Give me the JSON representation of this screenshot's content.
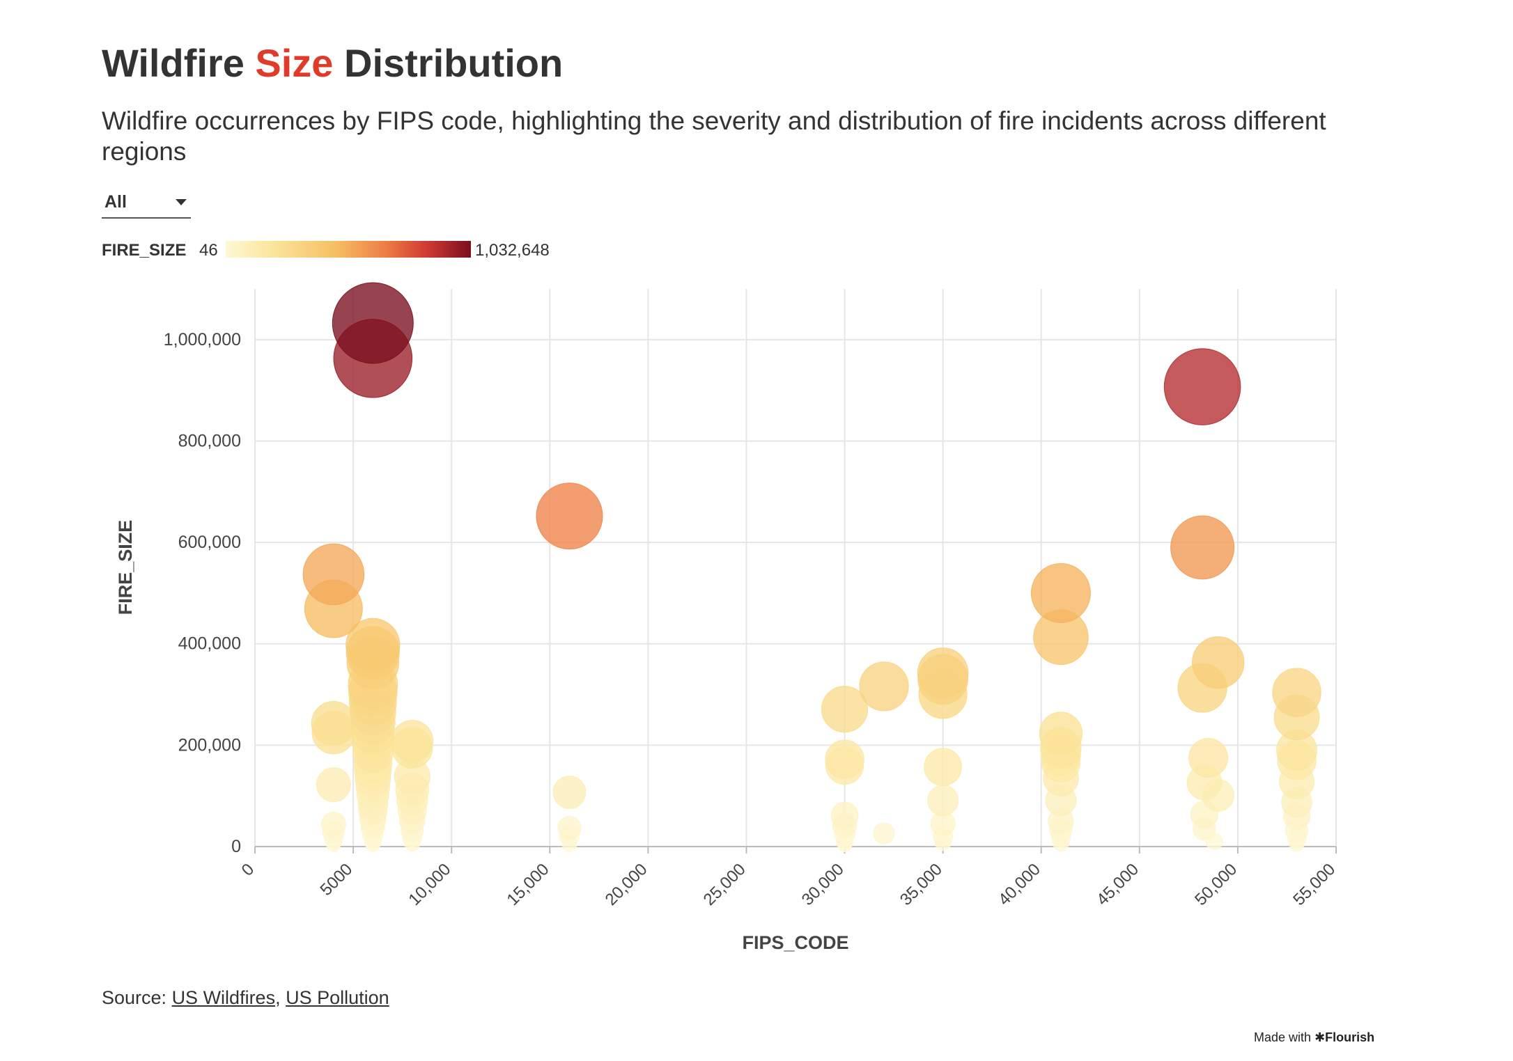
{
  "header": {
    "title_part1": "Wildfire ",
    "title_highlight": "Size",
    "title_part2": " Distribution",
    "subtitle": "Wildfire occurrences by FIPS code, highlighting the severity and distribution of fire incidents across different regions"
  },
  "filter": {
    "selected": "All"
  },
  "legend": {
    "title": "FIRE_SIZE",
    "min_label": "46",
    "max_label": "1,032,648"
  },
  "footer": {
    "source_prefix": "Source: ",
    "sources": [
      "US Wildfires",
      "US Pollution"
    ],
    "separator": ", ",
    "made_with": "Made with",
    "brand": "Flourish"
  },
  "colors": {
    "title_highlight": "#e03a2a",
    "scale": [
      "#fff8d6",
      "#fbe49a",
      "#f6bf63",
      "#ee7d46",
      "#d03a33",
      "#7a0f1f"
    ]
  },
  "chart_data": {
    "type": "scatter",
    "encoding": "bubble",
    "xlabel": "FIPS_CODE",
    "ylabel": "FIRE_SIZE",
    "xlim": [
      0,
      55000
    ],
    "ylim": [
      0,
      1100000
    ],
    "x_ticks": [
      0,
      5000,
      10000,
      15000,
      20000,
      25000,
      30000,
      35000,
      40000,
      45000,
      50000,
      55000
    ],
    "x_tick_labels": [
      "0",
      "5000",
      "10,000",
      "15,000",
      "20,000",
      "25,000",
      "30,000",
      "35,000",
      "40,000",
      "45,000",
      "50,000",
      "55,000"
    ],
    "y_ticks": [
      0,
      200000,
      400000,
      600000,
      800000,
      1000000
    ],
    "y_tick_labels": [
      "0",
      "200,000",
      "400,000",
      "600,000",
      "800,000",
      "1,000,000"
    ],
    "grid": true,
    "size_and_color_by": "FIRE_SIZE",
    "color_range": [
      46,
      1032648
    ],
    "points": [
      {
        "x": 6000,
        "y": 1032648
      },
      {
        "x": 6000,
        "y": 963000
      },
      {
        "x": 48200,
        "y": 907000
      },
      {
        "x": 16000,
        "y": 652000
      },
      {
        "x": 48200,
        "y": 590000
      },
      {
        "x": 4000,
        "y": 537000
      },
      {
        "x": 41000,
        "y": 500000
      },
      {
        "x": 4000,
        "y": 469000
      },
      {
        "x": 41000,
        "y": 413000
      },
      {
        "x": 6000,
        "y": 397000
      },
      {
        "x": 6000,
        "y": 382000
      },
      {
        "x": 6000,
        "y": 362000
      },
      {
        "x": 49000,
        "y": 363000
      },
      {
        "x": 35000,
        "y": 342000
      },
      {
        "x": 35000,
        "y": 330000
      },
      {
        "x": 6000,
        "y": 320000
      },
      {
        "x": 32000,
        "y": 316000
      },
      {
        "x": 48200,
        "y": 313000
      },
      {
        "x": 6000,
        "y": 305000
      },
      {
        "x": 53000,
        "y": 304000
      },
      {
        "x": 35000,
        "y": 300000
      },
      {
        "x": 6000,
        "y": 285000
      },
      {
        "x": 30000,
        "y": 271000
      },
      {
        "x": 6000,
        "y": 266000
      },
      {
        "x": 53000,
        "y": 255000
      },
      {
        "x": 4000,
        "y": 243000
      },
      {
        "x": 6000,
        "y": 245000
      },
      {
        "x": 4000,
        "y": 225000
      },
      {
        "x": 41000,
        "y": 223000
      },
      {
        "x": 6000,
        "y": 225000
      },
      {
        "x": 8000,
        "y": 208000
      },
      {
        "x": 6000,
        "y": 205000
      },
      {
        "x": 8000,
        "y": 195000
      },
      {
        "x": 41000,
        "y": 195000
      },
      {
        "x": 53000,
        "y": 190000
      },
      {
        "x": 6000,
        "y": 185000
      },
      {
        "x": 41000,
        "y": 180000
      },
      {
        "x": 48500,
        "y": 175000
      },
      {
        "x": 30000,
        "y": 172000
      },
      {
        "x": 53000,
        "y": 170000
      },
      {
        "x": 6000,
        "y": 165000
      },
      {
        "x": 41000,
        "y": 165000
      },
      {
        "x": 30000,
        "y": 160000
      },
      {
        "x": 35000,
        "y": 157000
      },
      {
        "x": 6000,
        "y": 150000
      },
      {
        "x": 8000,
        "y": 138000
      },
      {
        "x": 41000,
        "y": 135000
      },
      {
        "x": 6000,
        "y": 135000
      },
      {
        "x": 53000,
        "y": 128000
      },
      {
        "x": 48300,
        "y": 126000
      },
      {
        "x": 4000,
        "y": 122000
      },
      {
        "x": 6000,
        "y": 118000
      },
      {
        "x": 8000,
        "y": 112000
      },
      {
        "x": 16000,
        "y": 107000
      },
      {
        "x": 6000,
        "y": 102000
      },
      {
        "x": 49000,
        "y": 101000
      },
      {
        "x": 8000,
        "y": 92000
      },
      {
        "x": 35000,
        "y": 91000
      },
      {
        "x": 41000,
        "y": 91000
      },
      {
        "x": 53000,
        "y": 87000
      },
      {
        "x": 6000,
        "y": 85000
      },
      {
        "x": 8000,
        "y": 72000
      },
      {
        "x": 6000,
        "y": 70000
      },
      {
        "x": 48300,
        "y": 63000
      },
      {
        "x": 30000,
        "y": 61000
      },
      {
        "x": 53000,
        "y": 60000
      },
      {
        "x": 6000,
        "y": 55000
      },
      {
        "x": 8000,
        "y": 52000
      },
      {
        "x": 41000,
        "y": 50000
      },
      {
        "x": 35000,
        "y": 45000
      },
      {
        "x": 4000,
        "y": 44000
      },
      {
        "x": 30000,
        "y": 42000
      },
      {
        "x": 6000,
        "y": 40000
      },
      {
        "x": 16000,
        "y": 37000
      },
      {
        "x": 48300,
        "y": 35000
      },
      {
        "x": 41000,
        "y": 33000
      },
      {
        "x": 8000,
        "y": 32000
      },
      {
        "x": 53000,
        "y": 32000
      },
      {
        "x": 4000,
        "y": 28000
      },
      {
        "x": 32000,
        "y": 26000
      },
      {
        "x": 6000,
        "y": 25000
      },
      {
        "x": 30000,
        "y": 25000
      },
      {
        "x": 16000,
        "y": 22000
      },
      {
        "x": 35000,
        "y": 20000
      },
      {
        "x": 8000,
        "y": 18000
      },
      {
        "x": 41000,
        "y": 18000
      },
      {
        "x": 53000,
        "y": 16000
      },
      {
        "x": 6000,
        "y": 12000
      },
      {
        "x": 4000,
        "y": 12000
      },
      {
        "x": 30000,
        "y": 10000
      },
      {
        "x": 48800,
        "y": 10000
      },
      {
        "x": 35000,
        "y": 8000
      },
      {
        "x": 8000,
        "y": 6000
      },
      {
        "x": 41000,
        "y": 6000
      },
      {
        "x": 6000,
        "y": 4000
      },
      {
        "x": 16000,
        "y": 5000
      },
      {
        "x": 53000,
        "y": 5000
      },
      {
        "x": 4000,
        "y": 3000
      },
      {
        "x": 30000,
        "y": 3000
      }
    ]
  }
}
